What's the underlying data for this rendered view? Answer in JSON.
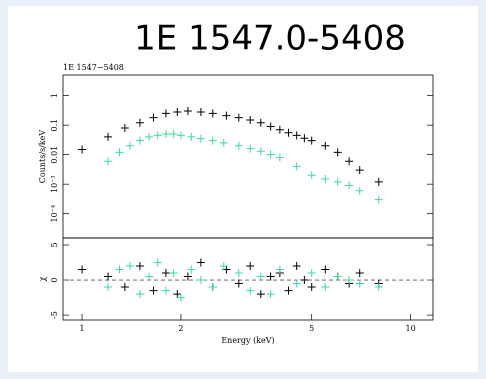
{
  "title": "1E 1547.0-5408",
  "chart_data": [
    {
      "type": "scatter",
      "label": "1E 1547−5408",
      "ylabel": "Counts/s/keV",
      "xlog": true,
      "ylog": true,
      "xlim": [
        0.875,
        11.7
      ],
      "ylim": [
        1.5e-05,
        5
      ],
      "yticks": [
        1,
        0.1,
        0.01,
        {
          "value": 0.001,
          "label": "10⁻³"
        },
        {
          "value": 0.0001,
          "label": "10⁻⁴"
        }
      ],
      "series": [
        {
          "color": "#000000",
          "x": [
            1.0,
            1.2,
            1.35,
            1.5,
            1.65,
            1.8,
            1.95,
            2.1,
            2.3,
            2.5,
            2.75,
            3.0,
            3.25,
            3.5,
            3.75,
            4.0,
            4.25,
            4.5,
            4.75,
            5.0,
            5.5,
            6.0,
            6.5,
            7.0,
            8.0
          ],
          "values": [
            0.015,
            0.04,
            0.08,
            0.12,
            0.18,
            0.25,
            0.28,
            0.3,
            0.28,
            0.25,
            0.21,
            0.18,
            0.15,
            0.12,
            0.09,
            0.07,
            0.055,
            0.045,
            0.036,
            0.03,
            0.02,
            0.012,
            0.006,
            0.003,
            0.0012
          ]
        },
        {
          "color": "#3ddc97",
          "x": [
            1.2,
            1.3,
            1.4,
            1.5,
            1.6,
            1.7,
            1.8,
            1.9,
            2.0,
            2.15,
            2.3,
            2.5,
            2.7,
            3.0,
            3.25,
            3.5,
            3.75,
            4.0,
            4.5,
            5.0,
            5.5,
            6.0,
            6.5,
            7.0,
            8.0
          ],
          "values": [
            0.006,
            0.012,
            0.02,
            0.03,
            0.04,
            0.045,
            0.05,
            0.05,
            0.045,
            0.04,
            0.035,
            0.03,
            0.025,
            0.02,
            0.016,
            0.013,
            0.01,
            0.008,
            0.004,
            0.002,
            0.0015,
            0.0012,
            0.0009,
            0.0006,
            0.0003
          ]
        }
      ]
    },
    {
      "type": "scatter",
      "ylabel": "χ",
      "xlabel": "Energy (keV)",
      "xlog": true,
      "hline": 0,
      "xlim": [
        0.875,
        11.7
      ],
      "ylim": [
        -5.7,
        6
      ],
      "xticks": [
        1,
        2,
        5,
        10
      ],
      "yticks": [
        5,
        0,
        -5
      ],
      "series": [
        {
          "color": "#000000",
          "x": [
            1.0,
            1.2,
            1.35,
            1.5,
            1.65,
            1.8,
            1.95,
            2.1,
            2.3,
            2.5,
            2.75,
            3.0,
            3.25,
            3.5,
            3.75,
            4.0,
            4.25,
            4.5,
            4.75,
            5.0,
            5.5,
            6.0,
            6.5,
            7.0,
            8.0
          ],
          "values": [
            1.5,
            0.5,
            -1,
            2,
            -1.5,
            1,
            -2,
            0.5,
            2.5,
            -1,
            1.5,
            -0.5,
            2,
            -2,
            0.5,
            1,
            -1.5,
            2,
            0,
            -1,
            1.5,
            0.5,
            -0.5,
            1,
            -0.5
          ]
        },
        {
          "color": "#3ddc97",
          "x": [
            1.2,
            1.3,
            1.4,
            1.5,
            1.6,
            1.7,
            1.8,
            1.9,
            2.0,
            2.15,
            2.3,
            2.5,
            2.7,
            3.0,
            3.25,
            3.5,
            3.75,
            4.0,
            4.5,
            5.0,
            5.5,
            6.0,
            6.5,
            7.0,
            8.0
          ],
          "values": [
            -1,
            1.5,
            2,
            -2,
            0.5,
            2.5,
            -1.5,
            1,
            -2.5,
            1.5,
            0,
            -1,
            2,
            1,
            -1.5,
            0.5,
            -2,
            1.5,
            -0.5,
            1,
            -1,
            0.5,
            0,
            -0.5,
            -1
          ]
        }
      ]
    }
  ]
}
